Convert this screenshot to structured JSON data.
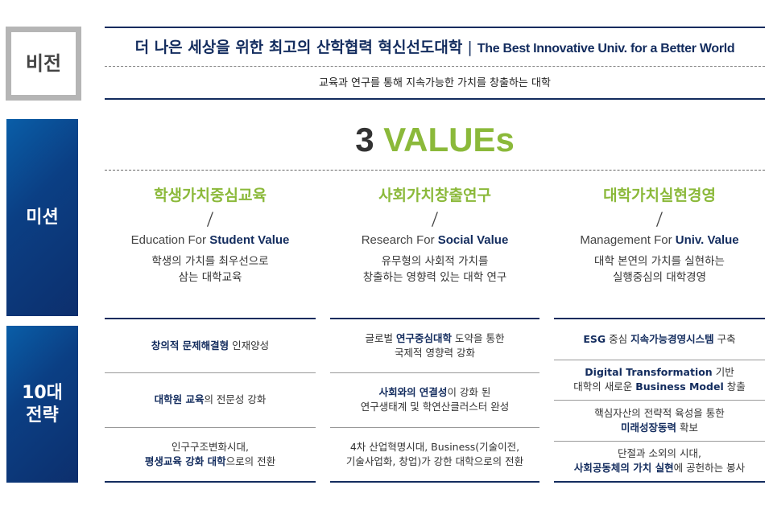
{
  "vision": {
    "label": "비전",
    "title_ko": "더 나은 세상을 위한 최고의 산학협력 혁신선도대학",
    "separator": "|",
    "title_en": "The Best Innovative Univ. for a Better World",
    "subtitle": "교육과 연구를 통해 지속가능한 가치를 창출하는 대학"
  },
  "mission": {
    "label": "미션",
    "values_number": "3",
    "values_word": "VALUEs",
    "columns": [
      {
        "title": "학생가치중심교육",
        "slash": "/",
        "en_prefix": "Education For ",
        "en_bold": "Student Value",
        "desc": [
          "학생의 가치를 최우선으로",
          "삼는 대학교육"
        ]
      },
      {
        "title": "사회가치창출연구",
        "slash": "/",
        "en_prefix": "Research For ",
        "en_bold": "Social Value",
        "desc": [
          "유무형의 사회적 가치를",
          "창출하는 영향력 있는 대학 연구"
        ]
      },
      {
        "title": "대학가치실현경영",
        "slash": "/",
        "en_prefix": "Management For ",
        "en_bold": "Univ. Value",
        "desc": [
          "대학 본연의 가치를 실현하는",
          "실행중심의 대학경영"
        ]
      }
    ]
  },
  "strategy": {
    "label_line1": "10대",
    "label_line2": "전략",
    "columns": [
      [
        [
          [
            {
              "t": "창의적 문제해결형",
              "h": true
            },
            {
              "t": " 인재양성"
            }
          ]
        ],
        [
          [
            {
              "t": "대학원 교육",
              "h": true
            },
            {
              "t": "의 전문성 강화"
            }
          ]
        ],
        [
          [
            {
              "t": "인구구조변화시대,"
            }
          ],
          [
            {
              "t": "평생교육 강화 대학",
              "h": true
            },
            {
              "t": "으로의 전환"
            }
          ]
        ]
      ],
      [
        [
          [
            {
              "t": "글로벌 "
            },
            {
              "t": "연구중심대학",
              "h": true
            },
            {
              "t": " 도약을 통한"
            }
          ],
          [
            {
              "t": "국제적 영향력 강화"
            }
          ]
        ],
        [
          [
            {
              "t": "사회와의 연결성",
              "h": true
            },
            {
              "t": "이 강화 된"
            }
          ],
          [
            {
              "t": "연구생태계 및 학연산클러스터 완성"
            }
          ]
        ],
        [
          [
            {
              "t": "4차 산업혁명시대, Business(기술이전,"
            }
          ],
          [
            {
              "t": "기술사업화, 창업)가 강한 대학으로의 전환"
            }
          ]
        ]
      ],
      [
        [
          [
            {
              "t": "ESG",
              "h": true
            },
            {
              "t": " 중심 "
            },
            {
              "t": "지속가능경영시스템",
              "h": true
            },
            {
              "t": " 구축"
            }
          ]
        ],
        [
          [
            {
              "t": "Digital Transformation",
              "h": true
            },
            {
              "t": " 기반"
            }
          ],
          [
            {
              "t": "대학의 새로운 "
            },
            {
              "t": "Business Model",
              "h": true
            },
            {
              "t": " 창출"
            }
          ]
        ],
        [
          [
            {
              "t": "핵심자산의 전략적 육성을 통한"
            }
          ],
          [
            {
              "t": "미래성장동력",
              "h": true
            },
            {
              "t": " 확보"
            }
          ]
        ],
        [
          [
            {
              "t": "단절과 소외의 시대,"
            }
          ],
          [
            {
              "t": "사회공동체의 가치 실현",
              "h": true
            },
            {
              "t": "에 공헌하는 봉사"
            }
          ]
        ]
      ]
    ]
  },
  "colors": {
    "navy": "#132c5e",
    "green": "#8bb93a",
    "blue": "#0b3f84",
    "gray_border": "#b5b5b5"
  }
}
